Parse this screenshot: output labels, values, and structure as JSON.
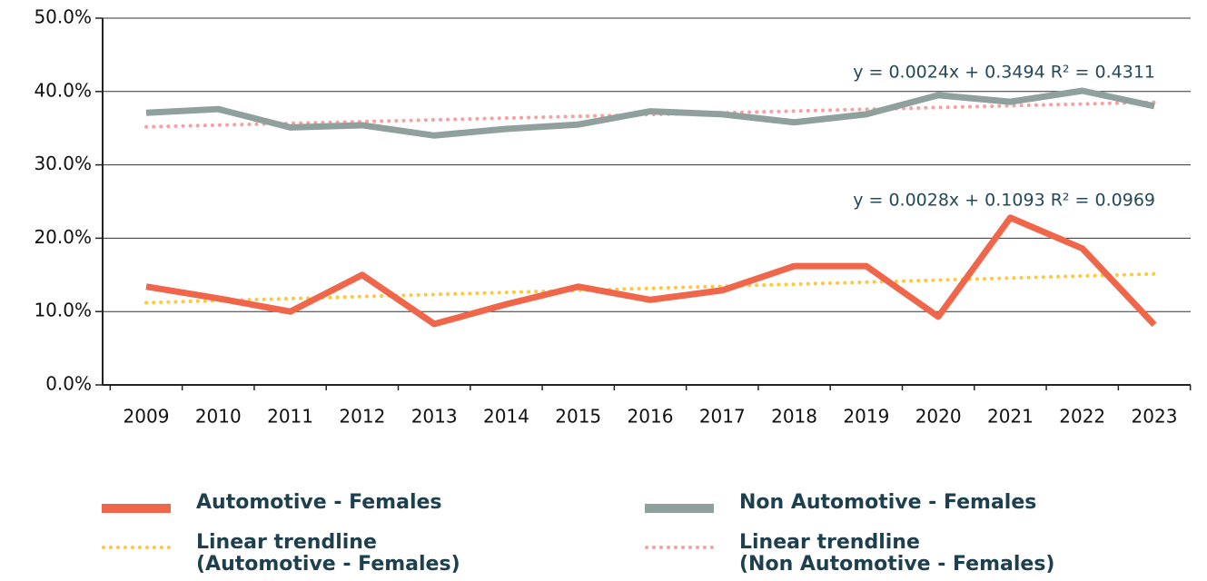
{
  "chart_data": {
    "type": "line",
    "categories": [
      "2009",
      "2010",
      "2011",
      "2012",
      "2013",
      "2014",
      "2015",
      "2016",
      "2017",
      "2018",
      "2019",
      "2020",
      "2021",
      "2022",
      "2023"
    ],
    "ylim": [
      0,
      50
    ],
    "yticks": [
      {
        "value": 0,
        "label": "0.0%"
      },
      {
        "value": 10,
        "label": "10.0%"
      },
      {
        "value": 20,
        "label": "20.0%"
      },
      {
        "value": 30,
        "label": "30.0%"
      },
      {
        "value": 40,
        "label": "40.0%"
      },
      {
        "value": 50,
        "label": "50.0%"
      }
    ],
    "grid": true,
    "series": [
      {
        "name": "Automotive - Females",
        "color": "#f0664a",
        "style": "solid",
        "values": [
          13.4,
          11.8,
          10.0,
          15.0,
          8.3,
          11.0,
          13.4,
          11.6,
          12.9,
          16.2,
          16.2,
          9.3,
          22.8,
          18.6,
          8.2
        ]
      },
      {
        "name": "Non Automotive - Females",
        "color": "#8fa09d",
        "style": "solid",
        "values": [
          37.1,
          37.6,
          35.1,
          35.4,
          34.0,
          34.9,
          35.5,
          37.3,
          36.9,
          35.8,
          36.9,
          39.5,
          38.6,
          40.1,
          38.0
        ]
      },
      {
        "name": "Linear trendline\n(Automotive - Females)",
        "color": "#fcc93f",
        "style": "dotted",
        "values": [
          11.21,
          11.49,
          11.77,
          12.05,
          12.33,
          12.61,
          12.89,
          13.17,
          13.45,
          13.73,
          14.01,
          14.29,
          14.57,
          14.85,
          15.13
        ]
      },
      {
        "name": "Linear trendline\n(Non Automotive - Females)",
        "color": "#f4a3a3",
        "style": "dotted",
        "values": [
          35.18,
          35.42,
          35.66,
          35.9,
          36.14,
          36.38,
          36.62,
          36.86,
          37.1,
          37.34,
          37.58,
          37.82,
          38.06,
          38.3,
          38.54
        ]
      }
    ],
    "annotations": [
      "y = 0.0024x + 0.3494 R² = 0.4311",
      "y = 0.0028x + 0.1093 R² = 0.0969"
    ]
  }
}
